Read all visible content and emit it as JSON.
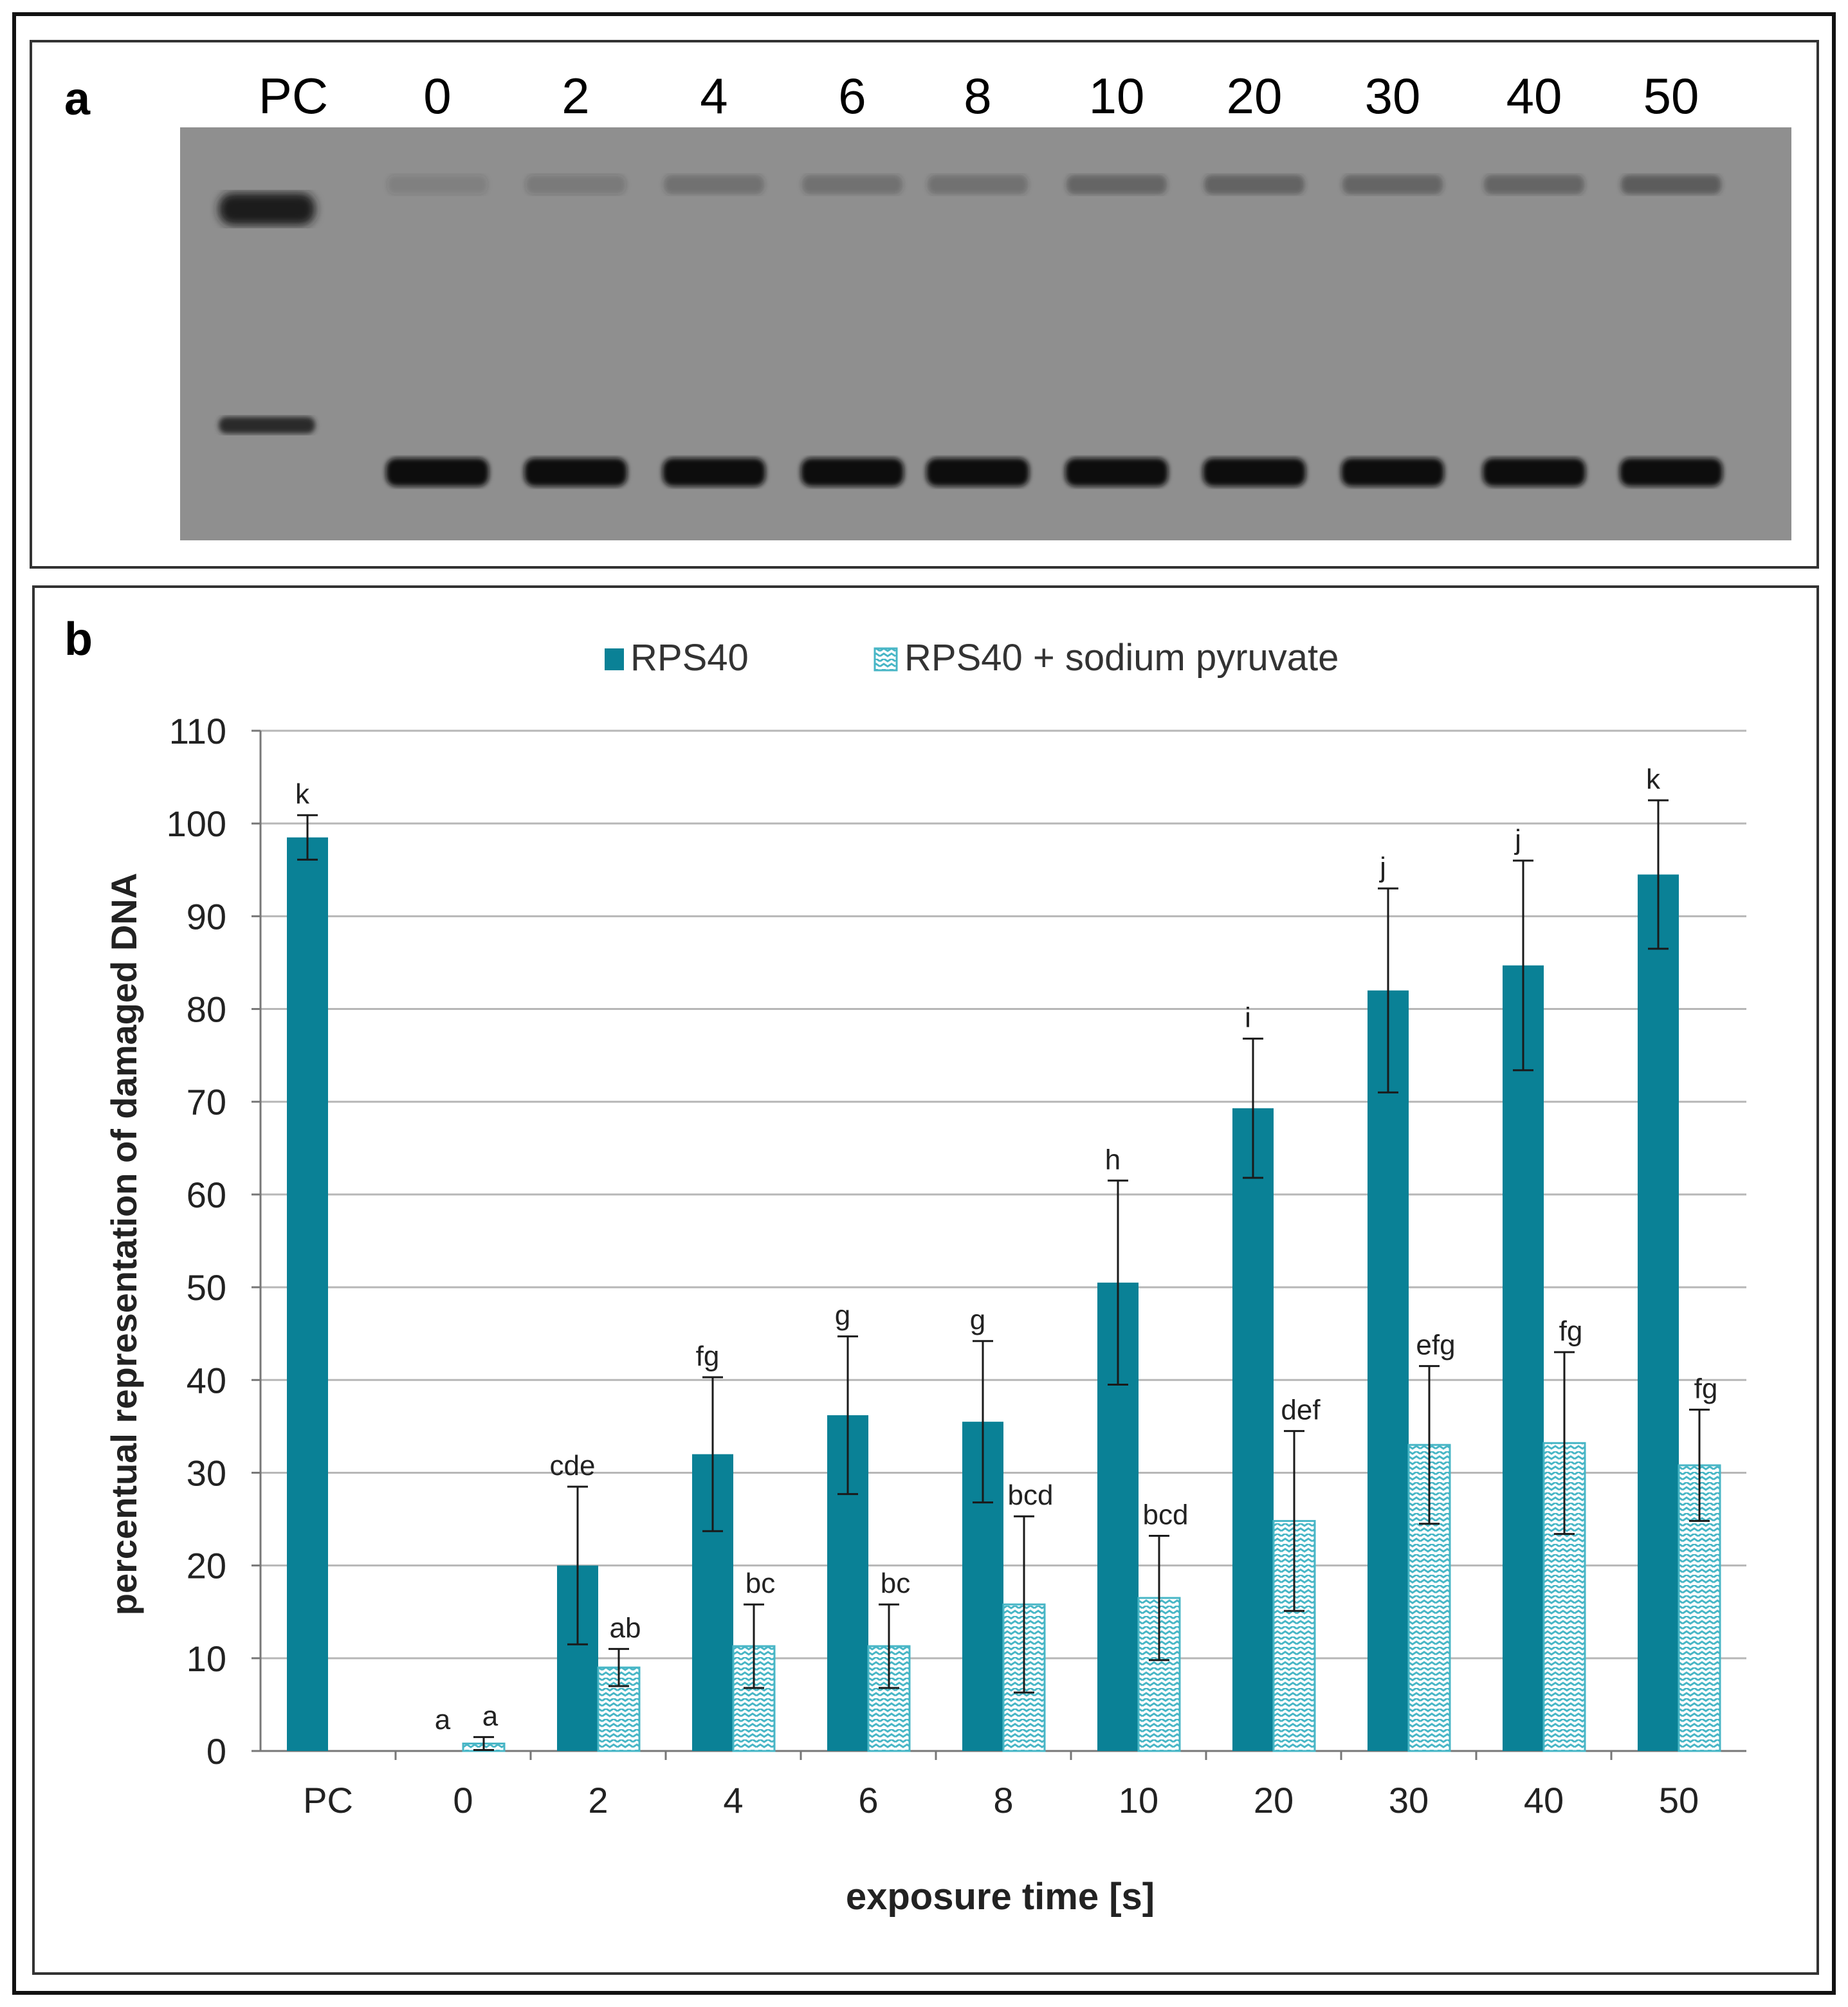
{
  "panels": {
    "a": {
      "label": "a",
      "lanes": [
        "PC",
        "0",
        "2",
        "4",
        "6",
        "8",
        "10",
        "20",
        "30",
        "40",
        "50"
      ]
    },
    "b": {
      "label": "b"
    }
  },
  "colors": {
    "series1": "#0a8196",
    "series2_pattern": "#48b6c6",
    "error_bar": "#1a1a1a",
    "grid": "#b7b7b7",
    "gel_background": "#8e8e8e",
    "gel_band": "#111111"
  },
  "chart_data": {
    "type": "bar",
    "xlabel": "exposure time [s]",
    "ylabel": "percentual representation of damaged DNA",
    "ylim": [
      0,
      110
    ],
    "yticks": [
      0,
      10,
      20,
      30,
      40,
      50,
      60,
      70,
      80,
      90,
      100,
      110
    ],
    "grid": true,
    "legend_position": "top-center",
    "categories": [
      "PC",
      "0",
      "2",
      "4",
      "6",
      "8",
      "10",
      "20",
      "30",
      "40",
      "50"
    ],
    "series": [
      {
        "name": "RPS40",
        "values": [
          98.5,
          null,
          20,
          32,
          36.2,
          35.5,
          50.5,
          69.3,
          82,
          84.7,
          94.5
        ],
        "errors": [
          2.4,
          null,
          8.5,
          8.3,
          8.5,
          8.7,
          11,
          7.5,
          11,
          11.3,
          8
        ],
        "letters": [
          "k",
          "a",
          "cde",
          "fg",
          "g",
          "g",
          "h",
          "i",
          "j",
          "j",
          "k"
        ]
      },
      {
        "name": "RPS40 + sodium pyruvate",
        "values": [
          null,
          0.8,
          9,
          11.3,
          11.3,
          15.8,
          16.5,
          24.8,
          33,
          33.2,
          30.8
        ],
        "errors": [
          null,
          0.7,
          2,
          4.5,
          4.5,
          9.5,
          6.7,
          9.7,
          8.5,
          9.8,
          6
        ],
        "letters": [
          "",
          "a",
          "ab",
          "bc",
          "bc",
          "bcd",
          "bcd",
          "def",
          "efg",
          "fg",
          "fg"
        ]
      }
    ]
  }
}
